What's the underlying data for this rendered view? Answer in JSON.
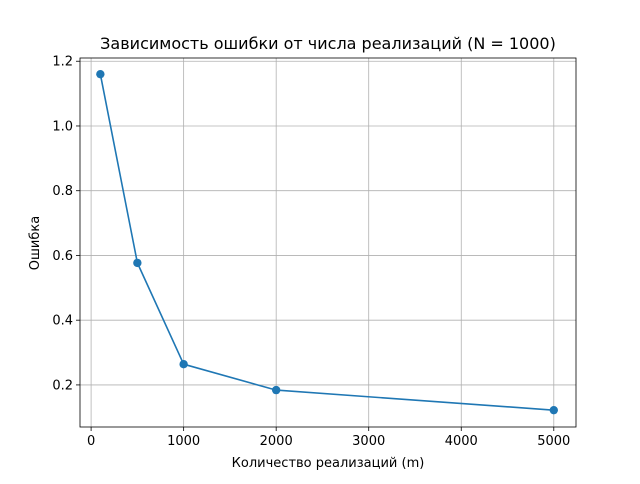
{
  "chart_data": {
    "type": "line",
    "title": "Зависимость ошибки от числа реализаций (N = 1000)",
    "xlabel": "Количество реализаций (m)",
    "ylabel": "Ошибка",
    "xlim": [
      -120,
      5240
    ],
    "ylim": [
      0.07,
      1.21
    ],
    "xticks": [
      0,
      1000,
      2000,
      3000,
      4000,
      5000
    ],
    "xtick_labels": [
      "0",
      "1000",
      "2000",
      "3000",
      "4000",
      "5000"
    ],
    "yticks": [
      0.2,
      0.4,
      0.6,
      0.8,
      1.0,
      1.2
    ],
    "ytick_labels": [
      "0.2",
      "0.4",
      "0.6",
      "0.8",
      "1.0",
      "1.2"
    ],
    "grid": true,
    "series": [
      {
        "color": "#1f77b4",
        "marker": "circle",
        "x": [
          100,
          500,
          1000,
          2000,
          5000
        ],
        "y": [
          1.16,
          0.577,
          0.264,
          0.184,
          0.122
        ]
      }
    ]
  }
}
